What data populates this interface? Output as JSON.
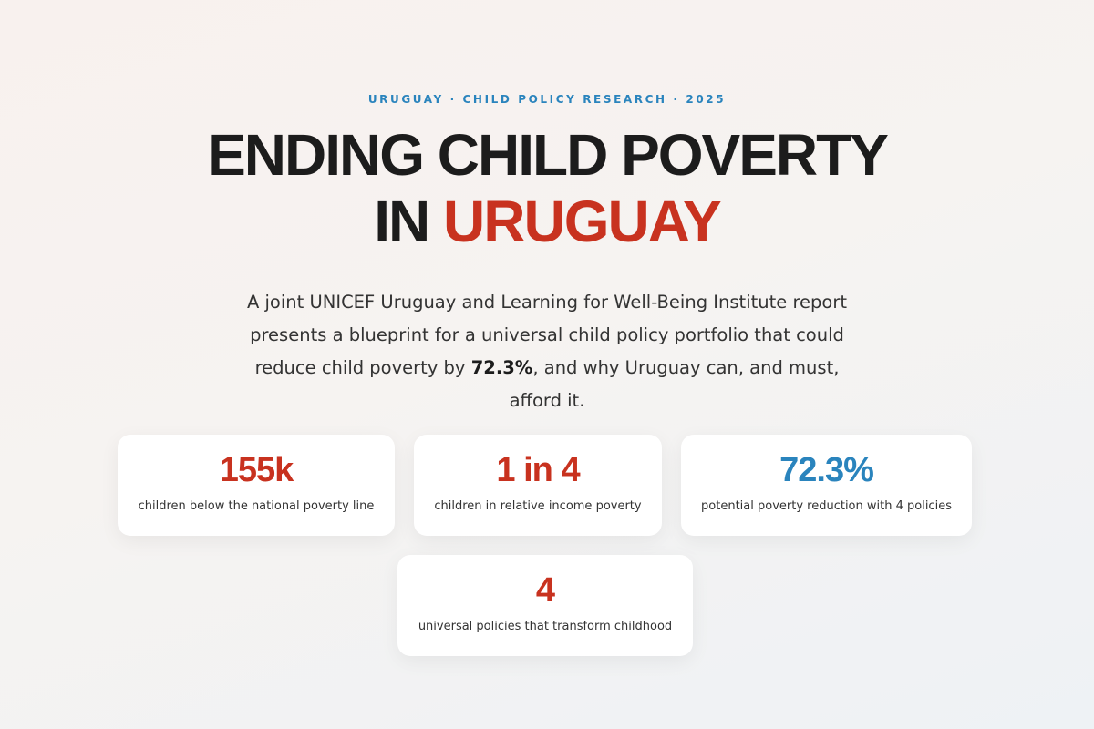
{
  "header": {
    "eyebrow": "URUGUAY · CHILD POLICY RESEARCH · 2025",
    "title_line_1": "ENDING CHILD POVERTY",
    "title_line_2_prefix": "IN",
    "title_line_2_accent": "URUGUAY",
    "accent_color": "#c8321f"
  },
  "intro": {
    "before": "A joint UNICEF Uruguay and Learning for Well-Being Institute report presents a blueprint for a universal child policy portfolio that could reduce child poverty by",
    "highlight": "72.3%",
    "after": ", and why Uruguay can, and must, afford it."
  },
  "stats": [
    {
      "value": "155k",
      "label": "children below the national poverty line",
      "color": "#c8321f"
    },
    {
      "value": "1 in 4",
      "label": "children in relative income poverty",
      "color": "#c8321f"
    },
    {
      "value": "72.3%",
      "label": "potential poverty reduction with 4 policies",
      "color": "#2a84bd"
    },
    {
      "value": "4",
      "label": "universal policies that transform childhood",
      "color": "#c8321f"
    }
  ]
}
